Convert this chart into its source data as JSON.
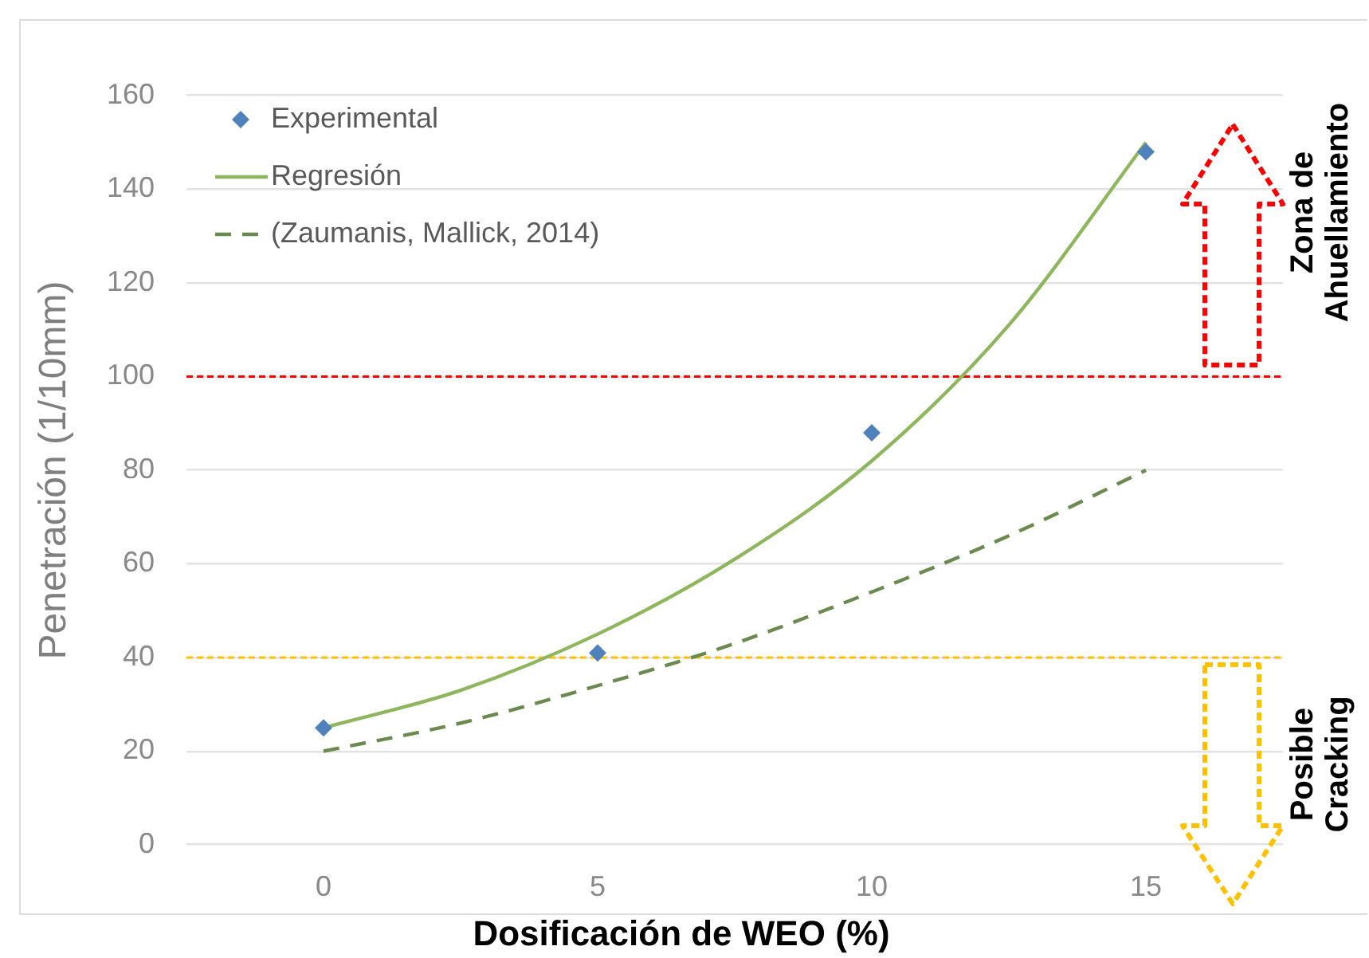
{
  "chart_data": {
    "type": "line",
    "xlabel": "Dosificación de WEO (%)",
    "ylabel": "Penetración (1/10mm)",
    "xlim": [
      -2.5,
      17.5
    ],
    "xticks": [
      0,
      5,
      10,
      15
    ],
    "ylim": [
      0,
      160
    ],
    "yticks": [
      0,
      20,
      40,
      60,
      80,
      100,
      120,
      140,
      160
    ],
    "grid": "y",
    "legend": "top left",
    "series": [
      {
        "name": "Experimental",
        "type": "scatter",
        "marker": "diamond",
        "color": "#4f81bd",
        "x": [
          0,
          5,
          10,
          15
        ],
        "values": [
          25,
          41,
          88,
          148
        ]
      },
      {
        "name": "Regresión",
        "line_style": "solid",
        "color": "#8db65d",
        "x": [
          0,
          2.5,
          5,
          7.5,
          10,
          12.5,
          15
        ],
        "values": [
          25,
          33,
          45,
          61,
          82,
          111,
          150
        ]
      },
      {
        "name": "(Zaumanis, Mallick, 2014)",
        "line_style": "dashed",
        "color": "#6b8a4f",
        "x": [
          0,
          2.5,
          5,
          7.5,
          10,
          12.5,
          15
        ],
        "values": [
          20,
          26,
          34,
          43,
          54,
          66,
          80
        ]
      }
    ],
    "ref_lines": [
      {
        "axis": "y",
        "value": 100,
        "label": "Zona de Ahuellamiento",
        "color": "#ff0000",
        "line_style": "dashed"
      },
      {
        "axis": "y",
        "value": 40,
        "label": "Posible Cracking",
        "color": "#ffc000",
        "line_style": "dashed"
      }
    ]
  }
}
